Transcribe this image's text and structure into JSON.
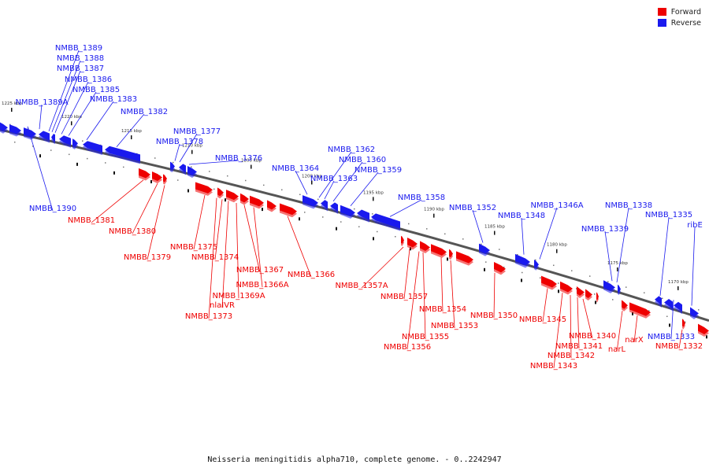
{
  "colors": {
    "forward": "#ee0000",
    "reverse": "#1a1aee",
    "axis": "#555555"
  },
  "legend": [
    {
      "label": "Forward",
      "color": "#ee0000"
    },
    {
      "label": "Reverse",
      "color": "#1a1aee"
    }
  ],
  "caption": "Neisseria meningitidis alpha710, complete genome. - 0..2242947",
  "ticks": [
    "1225 kbp",
    "1220 kbp",
    "1215 kbp",
    "1210 kbp",
    "1205 kbp",
    "1200 kbp",
    "1195 kbp",
    "1190 kbp",
    "1185 kbp",
    "1180 kbp",
    "1175 kbp",
    "1170 kbp"
  ],
  "genes_reverse": [
    "NMBB_1389",
    "NMBB_1388",
    "NMBB_1387",
    "NMBB_1386",
    "NMBB_1385",
    "NMBB_1389A",
    "NMBB_1383",
    "NMBB_1382",
    "NMBB_1377",
    "NMBB_1378",
    "NMBB_1376",
    "NMBB_1390",
    "NMBB_1362",
    "NMBB_1360",
    "NMBB_1364",
    "NMBB_1363",
    "NMBB_1359",
    "NMBB_1358",
    "NMBB_1352",
    "NMBB_1348",
    "NMBB_1346A",
    "NMBB_1338",
    "NMBB_1335",
    "NMBB_1339",
    "ribE",
    "NMBB_1333"
  ],
  "genes_forward": [
    "NMBB_1381",
    "NMBB_1380",
    "NMBB_1379",
    "NMBB_1375",
    "NMBB_1374",
    "NMBB_1367",
    "NMBB_1366A",
    "nlaIVR",
    "NMBB_1369A",
    "NMBB_1373",
    "NMBB_1366",
    "NMBB_1357A",
    "NMBB_1357",
    "NMBB_1354",
    "NMBB_1353",
    "NMBB_1355",
    "NMBB_1356",
    "NMBB_1350",
    "NMBB_1345",
    "NMBB_1340",
    "NMBB_1341",
    "NMBB_1342",
    "NMBB_1343",
    "narX",
    "narL",
    "NMBB_1332"
  ]
}
